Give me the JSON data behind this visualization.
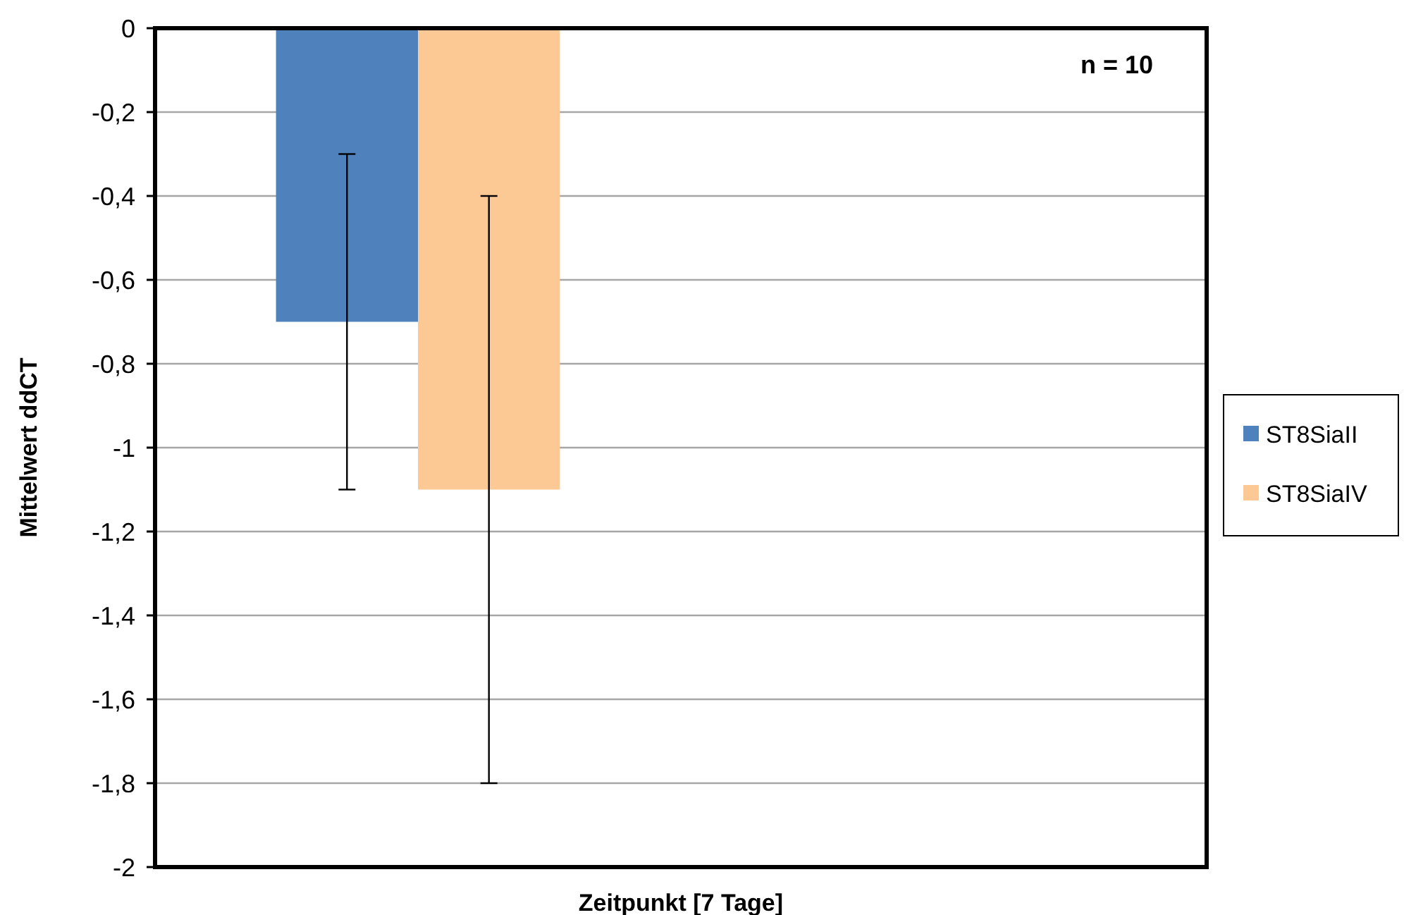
{
  "chart_data": {
    "type": "bar",
    "xlabel": "Zeitpunkt [7 Tage]",
    "ylabel": "Mittelwert ddCT",
    "categories": [
      null,
      null
    ],
    "series": [
      {
        "name": "ST8SiaII",
        "color": "#4f81bd",
        "values": [
          -0.7,
          null
        ],
        "errors": [
          0.4,
          null
        ]
      },
      {
        "name": "ST8SiaIV",
        "color": "#fcc995",
        "values": [
          -1.1,
          null
        ],
        "errors": [
          0.7,
          null
        ]
      }
    ],
    "ylim": [
      -2,
      0
    ],
    "yticks": [
      {
        "value": -2,
        "label": "-2"
      },
      {
        "value": -1.8,
        "label": "-1,8"
      },
      {
        "value": -1.6,
        "label": "-1,6"
      },
      {
        "value": -1.4,
        "label": "-1,4"
      },
      {
        "value": -1.2,
        "label": "-1,2"
      },
      {
        "value": -1,
        "label": "-1"
      },
      {
        "value": -0.8,
        "label": "-0,8"
      },
      {
        "value": -0.6,
        "label": "-0,6"
      },
      {
        "value": -0.4,
        "label": "-0,4"
      },
      {
        "value": -0.2,
        "label": "-0,2"
      },
      {
        "value": 0,
        "label": "0"
      }
    ],
    "grid": "y",
    "legend": "right",
    "annotations": [
      "n = 10"
    ]
  }
}
